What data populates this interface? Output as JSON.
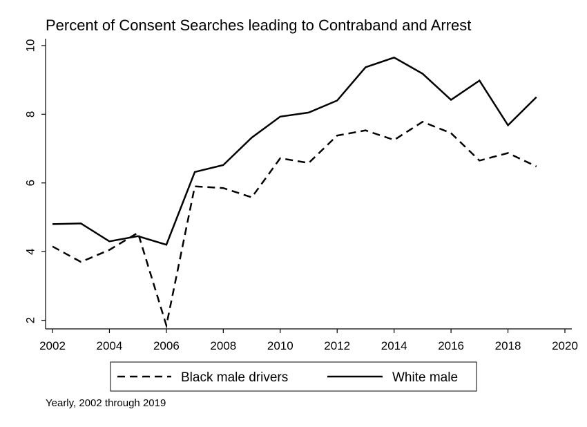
{
  "chart_data": {
    "type": "line",
    "title": "Percent of Consent Searches leading to Contraband and Arrest",
    "xlabel": "",
    "ylabel": "",
    "note": "Yearly, 2002 through 2019",
    "xlim": [
      2002,
      2020
    ],
    "ylim": [
      1.75,
      10.2
    ],
    "x_ticks": [
      "2002",
      "2004",
      "2006",
      "2008",
      "2010",
      "2012",
      "2014",
      "2016",
      "2018",
      "2020"
    ],
    "y_ticks": [
      "2",
      "4",
      "6",
      "8",
      "10"
    ],
    "grid": false,
    "legend_position": "bottom",
    "x": [
      2002,
      2003,
      2004,
      2005,
      2006,
      2007,
      2008,
      2009,
      2010,
      2011,
      2012,
      2013,
      2014,
      2015,
      2016,
      2017,
      2018,
      2019
    ],
    "series": [
      {
        "name": "Black male drivers",
        "style": "dashed",
        "color": "#000000",
        "values": [
          4.15,
          3.7,
          4.05,
          4.55,
          1.85,
          5.9,
          5.85,
          5.58,
          6.72,
          6.58,
          7.38,
          7.53,
          7.25,
          7.78,
          7.45,
          6.65,
          6.87,
          6.48
        ]
      },
      {
        "name": "White male",
        "style": "solid",
        "color": "#000000",
        "values": [
          4.8,
          4.82,
          4.3,
          4.45,
          4.2,
          6.32,
          6.52,
          7.32,
          7.93,
          8.05,
          8.4,
          9.37,
          9.65,
          9.18,
          8.42,
          8.98,
          7.68,
          8.5
        ]
      }
    ]
  }
}
